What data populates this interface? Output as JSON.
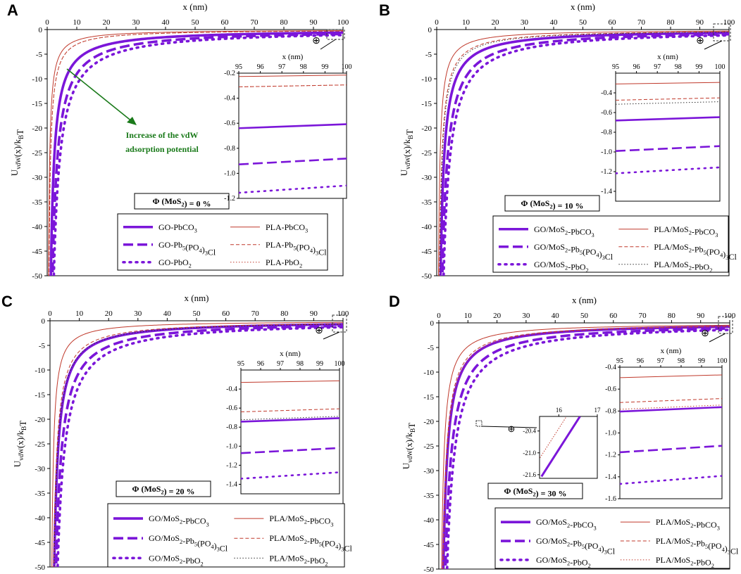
{
  "figure_title": "",
  "chart_data": [
    {
      "type": "line",
      "panel": "A",
      "xlabel": "x (nm)",
      "ylabel": "U_vdW(x)/k_B T",
      "xlim": [
        0,
        100
      ],
      "ylim": [
        -50,
        0
      ],
      "xticks": [
        0,
        10,
        20,
        30,
        40,
        50,
        60,
        70,
        80,
        90,
        100
      ],
      "yticks": [
        0,
        -5,
        -10,
        -15,
        -20,
        -25,
        -30,
        -35,
        -40,
        -45,
        -50
      ],
      "phi_label": "Φ (MoS2) = 0 %",
      "annotation": [
        "Increase of the vdW",
        "adsorption potential"
      ],
      "series": [
        {
          "name": "GO-PbCO3",
          "style": "solid-thick",
          "color": "#7b16d9",
          "A": 62
        },
        {
          "name": "GO-Pb5(PO4)3Cl",
          "style": "dash-thick",
          "color": "#7b16d9",
          "A": 90
        },
        {
          "name": "GO-PbO2",
          "style": "dot-thick",
          "color": "#7b16d9",
          "A": 112
        },
        {
          "name": "PLA-PbCO3",
          "style": "solid-thin",
          "color": "#c0392b",
          "A": 22
        },
        {
          "name": "PLA-Pb5(PO4)3Cl",
          "style": "dash-thin",
          "color": "#c0392b",
          "A": 30
        },
        {
          "name": "PLA-PbO2",
          "style": "dot-thin",
          "color": "#c0392b",
          "A": 30
        }
      ],
      "inset": {
        "xlabel": "x (nm)",
        "xlim": [
          95,
          100
        ],
        "ylim": [
          -1.2,
          -0.2
        ],
        "xticks": [
          95,
          96,
          97,
          98,
          99,
          100
        ],
        "yticks": [
          -0.2,
          -0.4,
          -0.6,
          -0.8,
          -1.0,
          -1.2
        ],
        "ytick_labels": [
          "-0.2",
          "-0.4",
          "-0.6",
          "-0.8",
          "-1.0",
          "-1.2"
        ]
      }
    },
    {
      "type": "line",
      "panel": "B",
      "xlabel": "x (nm)",
      "ylabel": "U_vdW(x)/k_B T",
      "xlim": [
        0,
        100
      ],
      "ylim": [
        -50,
        0
      ],
      "xticks": [
        0,
        10,
        20,
        30,
        40,
        50,
        60,
        70,
        80,
        90,
        100
      ],
      "yticks": [
        0,
        -5,
        -10,
        -15,
        -20,
        -25,
        -30,
        -35,
        -40,
        -45,
        -50
      ],
      "phi_label": "Φ (MoS2) = 10 %",
      "series": [
        {
          "name": "GO/MoS2-PbCO3",
          "style": "solid-thick",
          "color": "#7b16d9",
          "A": 66
        },
        {
          "name": "GO/MoS2-Pb5(PO4)3Cl",
          "style": "dash-thick",
          "color": "#7b16d9",
          "A": 96
        },
        {
          "name": "GO/MoS2-PbO2",
          "style": "dot-thick",
          "color": "#7b16d9",
          "A": 118
        },
        {
          "name": "PLA/MoS2-PbCO3",
          "style": "solid-thin",
          "color": "#c0392b",
          "A": 30
        },
        {
          "name": "PLA/MoS2-Pb5(PO4)3Cl",
          "style": "dash-thin",
          "color": "#c0392b",
          "A": 46
        },
        {
          "name": "PLA/MoS2-PbO2",
          "style": "dot-thin",
          "color": "#333333",
          "A": 50
        }
      ],
      "inset": {
        "xlabel": "x (nm)",
        "xlim": [
          95,
          100
        ],
        "ylim": [
          -1.5,
          -0.2
        ],
        "xticks": [
          95,
          96,
          97,
          98,
          99,
          100
        ],
        "yticks": [
          -0.4,
          -0.6,
          -0.8,
          -1.0,
          -1.2,
          -1.4
        ],
        "ytick_labels": [
          "-0.4",
          "-0.6",
          "-0.8",
          "-1.0",
          "-1.2",
          "-1.4"
        ]
      }
    },
    {
      "type": "line",
      "panel": "C",
      "xlabel": "x (nm)",
      "ylabel": "U_vdW(x)/k_B T",
      "xlim": [
        0,
        100
      ],
      "ylim": [
        -50,
        0
      ],
      "xticks": [
        0,
        10,
        20,
        30,
        40,
        50,
        60,
        70,
        80,
        90,
        100
      ],
      "yticks": [
        0,
        -5,
        -10,
        -15,
        -20,
        -25,
        -30,
        -35,
        -40,
        -45,
        -50
      ],
      "phi_label": "Φ (MoS2) = 20 %",
      "series": [
        {
          "name": "GO/MoS2-PbCO3",
          "style": "solid-thick",
          "color": "#7b16d9",
          "A": 72
        },
        {
          "name": "GO/MoS2-Pb5(PO4)3Cl",
          "style": "dash-thick",
          "color": "#7b16d9",
          "A": 104
        },
        {
          "name": "GO/MoS2-PbO2",
          "style": "dot-thick",
          "color": "#7b16d9",
          "A": 130
        },
        {
          "name": "PLA/MoS2-PbCO3",
          "style": "solid-thin",
          "color": "#c0392b",
          "A": 32
        },
        {
          "name": "PLA/MoS2-Pb5(PO4)3Cl",
          "style": "dash-thin",
          "color": "#c0392b",
          "A": 62
        },
        {
          "name": "PLA/MoS2-PbO2",
          "style": "dot-thin",
          "color": "#333333",
          "A": 70
        }
      ],
      "inset": {
        "xlabel": "x (nm)",
        "xlim": [
          95,
          100
        ],
        "ylim": [
          -1.5,
          -0.2
        ],
        "xticks": [
          95,
          96,
          97,
          98,
          99,
          100
        ],
        "yticks": [
          -0.4,
          -0.6,
          -0.8,
          -1.0,
          -1.2,
          -1.4
        ],
        "ytick_labels": [
          "-0.4",
          "-0.6",
          "-0.8",
          "-1.0",
          "-1.2",
          "-1.4"
        ]
      }
    },
    {
      "type": "line",
      "panel": "D",
      "xlabel": "x (nm)",
      "ylabel": "U_vdW(x)/k_B T",
      "xlim": [
        0,
        100
      ],
      "ylim": [
        -50,
        0
      ],
      "xticks": [
        0,
        10,
        20,
        30,
        40,
        50,
        60,
        70,
        80,
        90,
        100
      ],
      "yticks": [
        0,
        -5,
        -10,
        -15,
        -20,
        -25,
        -30,
        -35,
        -40,
        -45,
        -50
      ],
      "phi_label": "Φ (MoS2) = 30 %",
      "series": [
        {
          "name": "GO/MoS2-PbCO3",
          "style": "solid-thick",
          "color": "#7b16d9",
          "A": 78
        },
        {
          "name": "GO/MoS2-Pb5(PO4)3Cl",
          "style": "dash-thick",
          "color": "#7b16d9",
          "A": 114
        },
        {
          "name": "GO/MoS2-PbO2",
          "style": "dot-thick",
          "color": "#7b16d9",
          "A": 142
        },
        {
          "name": "PLA/MoS2-PbCO3",
          "style": "solid-thin",
          "color": "#c0392b",
          "A": 48
        },
        {
          "name": "PLA/MoS2-Pb5(PO4)3Cl",
          "style": "dash-thin",
          "color": "#c0392b",
          "A": 70
        },
        {
          "name": "PLA/MoS2-PbO2",
          "style": "dot-thin",
          "color": "#c0392b",
          "A": 76
        }
      ],
      "inset": {
        "xlabel": "x (nm)",
        "xlim": [
          95,
          100
        ],
        "ylim": [
          -1.6,
          -0.4
        ],
        "xticks": [
          95,
          96,
          97,
          98,
          99,
          100
        ],
        "yticks": [
          -0.4,
          -0.6,
          -0.8,
          -1.0,
          -1.2,
          -1.4,
          -1.6
        ],
        "ytick_labels": [
          "-0.4",
          "-0.6",
          "-0.8",
          "-1.0",
          "-1.2",
          "-1.4",
          "-1.6"
        ]
      },
      "inset2": {
        "xlim": [
          15.5,
          17
        ],
        "ylim": [
          -21.7,
          -20.0
        ],
        "xticks": [
          16,
          17
        ],
        "yticks": [
          -20.4,
          -21.0,
          -21.6
        ],
        "ytick_labels": [
          "-20.4",
          "-21.0",
          "-21.6"
        ]
      }
    }
  ]
}
